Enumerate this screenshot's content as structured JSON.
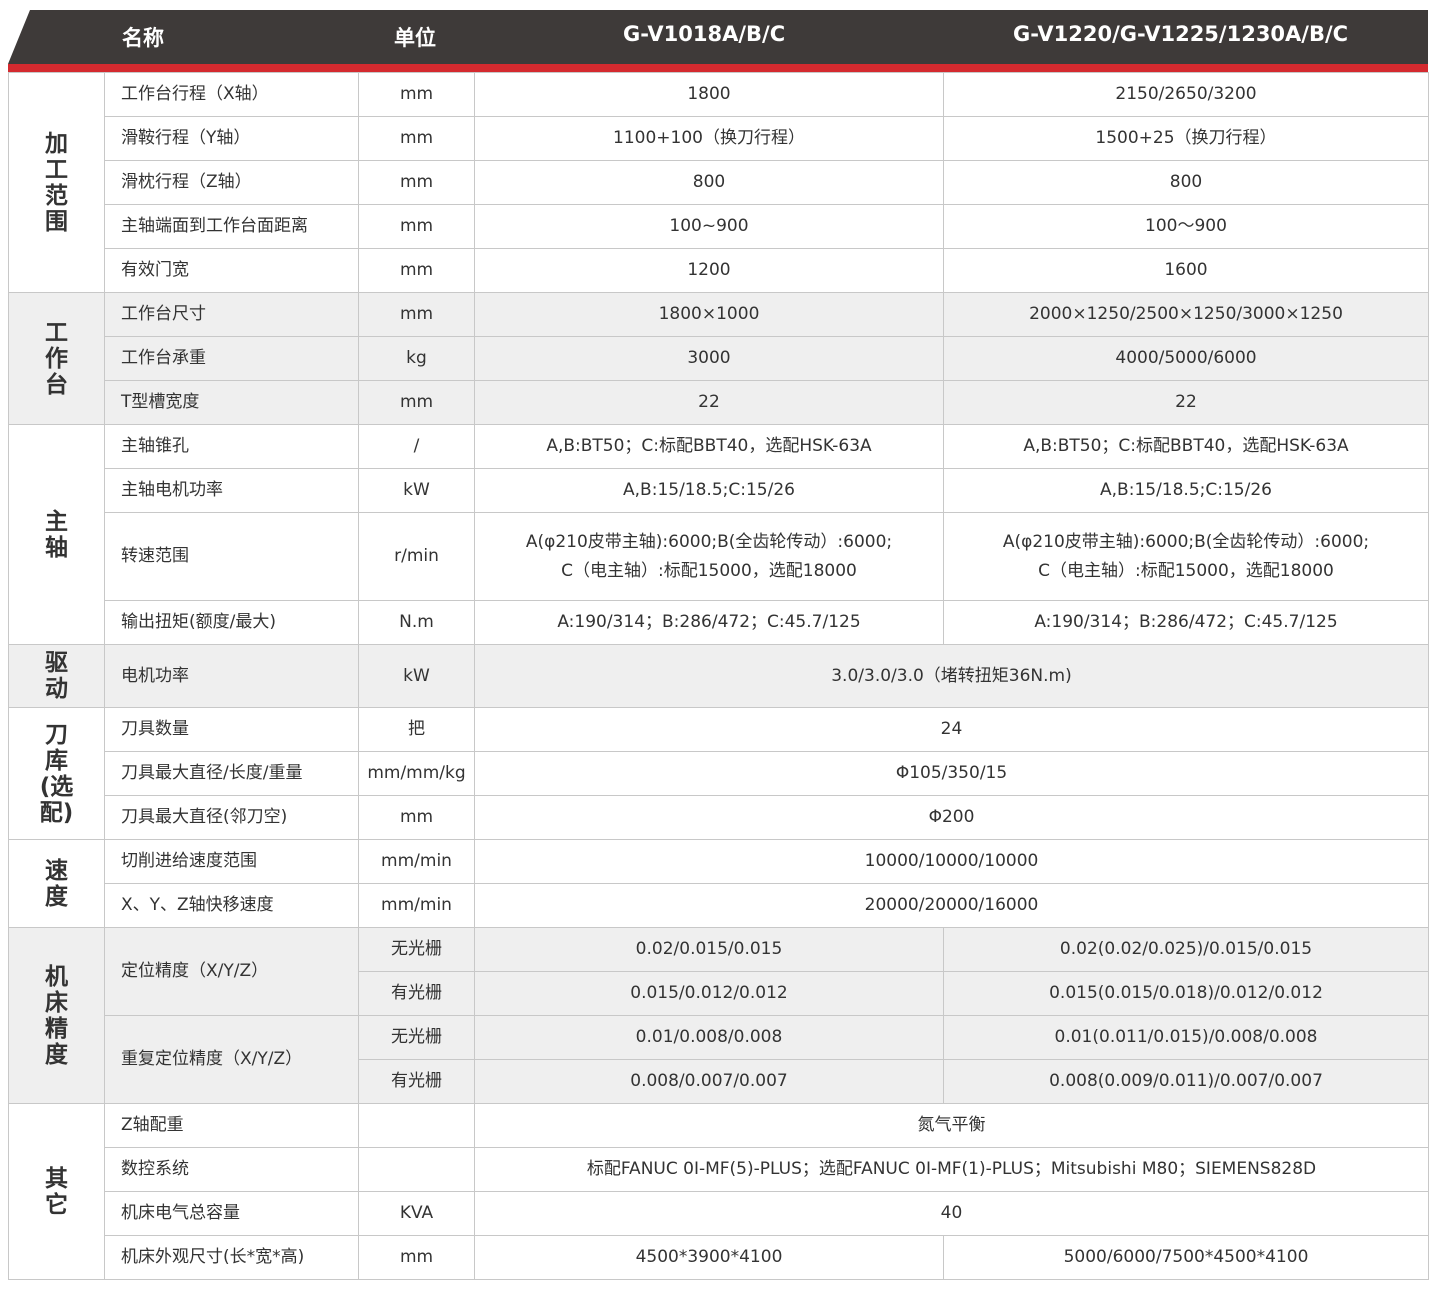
{
  "header": {
    "name": "名称",
    "unit": "单位",
    "model1": "G-V1018A/B/C",
    "model2": "G-V1220/G-V1225/1230A/B/C"
  },
  "colors": {
    "header_bg": "#3e3a39",
    "accent": "#d42a2f",
    "shade": "#efefef"
  },
  "groups": [
    {
      "label": "加工范围",
      "shaded": false,
      "rows": [
        {
          "name": "工作台行程（X轴）",
          "unit": "mm",
          "values": [
            "1800",
            "2150/2650/3200"
          ]
        },
        {
          "name": "滑鞍行程（Y轴）",
          "unit": "mm",
          "values": [
            "1100+100（换刀行程）",
            "1500+25（换刀行程）"
          ]
        },
        {
          "name": "滑枕行程（Z轴）",
          "unit": "mm",
          "values": [
            "800",
            "800"
          ]
        },
        {
          "name": "主轴端面到工作台面距离",
          "unit": "mm",
          "values": [
            "100~900",
            "100～900"
          ]
        },
        {
          "name": "有效门宽",
          "unit": "mm",
          "values": [
            "1200",
            "1600"
          ]
        }
      ]
    },
    {
      "label": "工作台",
      "shaded": true,
      "rows": [
        {
          "name": "工作台尺寸",
          "unit": "mm",
          "values": [
            "1800×1000",
            "2000×1250/2500×1250/3000×1250"
          ]
        },
        {
          "name": "工作台承重",
          "unit": "kg",
          "values": [
            "3000",
            "4000/5000/6000"
          ]
        },
        {
          "name": "T型槽宽度",
          "unit": "mm",
          "values": [
            "22",
            "22"
          ]
        }
      ]
    },
    {
      "label": "主轴",
      "shaded": false,
      "rows": [
        {
          "name": "主轴锥孔",
          "unit": "/",
          "values": [
            "A,B:BT50；C:标配BBT40，选配HSK-63A",
            "A,B:BT50；C:标配BBT40，选配HSK-63A"
          ]
        },
        {
          "name": "主轴电机功率",
          "unit": "kW",
          "values": [
            "A,B:15/18.5;C:15/26",
            "A,B:15/18.5;C:15/26"
          ]
        },
        {
          "name": "转速范围",
          "unit": "r/min",
          "tall": true,
          "values": [
            "A(φ210皮带主轴):6000;B(全齿轮传动）:6000;\nC（电主轴）:标配15000，选配18000",
            "A(φ210皮带主轴):6000;B(全齿轮传动）:6000;\nC（电主轴）:标配15000，选配18000"
          ]
        },
        {
          "name": "输出扭矩(额度/最大)",
          "unit": "N.m",
          "values": [
            "A:190/314；B:286/472；C:45.7/125",
            "A:190/314；B:286/472；C:45.7/125"
          ]
        }
      ]
    },
    {
      "label": "驱动",
      "shaded": true,
      "rows": [
        {
          "name": "电机功率",
          "unit": "kW",
          "h": 63,
          "values": [
            "3.0/3.0/3.0（堵转扭矩36N.m)"
          ]
        }
      ]
    },
    {
      "label": "刀库(选配)",
      "shaded": false,
      "rows": [
        {
          "name": "刀具数量",
          "unit": "把",
          "values": [
            "24"
          ]
        },
        {
          "name": "刀具最大直径/长度/重量",
          "unit": "mm/mm/kg",
          "values": [
            "Φ105/350/15"
          ]
        },
        {
          "name": "刀具最大直径(邻刀空)",
          "unit": "mm",
          "values": [
            "Φ200"
          ]
        }
      ]
    },
    {
      "label": "速度",
      "shaded": false,
      "rows": [
        {
          "name": "切削进给速度范围",
          "unit": "mm/min",
          "values": [
            "10000/10000/10000"
          ]
        },
        {
          "name": "X、Y、Z轴快移速度",
          "unit": "mm/min",
          "values": [
            "20000/20000/16000"
          ]
        }
      ]
    },
    {
      "label": "机床精度",
      "shaded": true,
      "rows": [
        {
          "name": "定位精度（X/Y/Z）",
          "span": 2,
          "unit": "无光栅",
          "values": [
            "0.02/0.015/0.015",
            "0.02(0.02/0.025)/0.015/0.015"
          ]
        },
        {
          "unit": "有光栅",
          "values": [
            "0.015/0.012/0.012",
            "0.015(0.015/0.018)/0.012/0.012"
          ]
        },
        {
          "name": "重复定位精度（X/Y/Z）",
          "span": 2,
          "unit": "无光栅",
          "values": [
            "0.01/0.008/0.008",
            "0.01(0.011/0.015)/0.008/0.008"
          ]
        },
        {
          "unit": "有光栅",
          "values": [
            "0.008/0.007/0.007",
            "0.008(0.009/0.011)/0.007/0.007"
          ]
        }
      ]
    },
    {
      "label": "其它",
      "shaded": false,
      "rows": [
        {
          "name": "Z轴配重",
          "unit": "",
          "values": [
            "氮气平衡"
          ]
        },
        {
          "name": "数控系统",
          "unit": "",
          "values": [
            "标配FANUC 0I-MF(5)-PLUS；选配FANUC 0I-MF(1)-PLUS；Mitsubishi M80；SIEMENS828D"
          ]
        },
        {
          "name": "机床电气总容量",
          "unit": "KVA",
          "values": [
            "40"
          ]
        },
        {
          "name": "机床外观尺寸(长*宽*高)",
          "unit": "mm",
          "values": [
            "4500*3900*4100",
            "5000/6000/7500*4500*4100"
          ]
        }
      ]
    }
  ]
}
